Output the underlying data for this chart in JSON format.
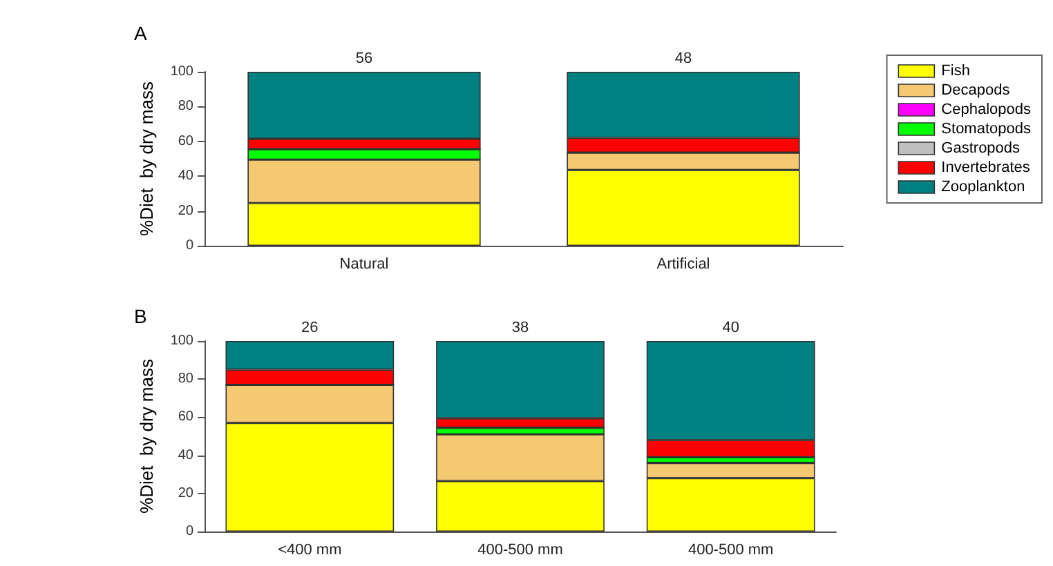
{
  "chart_data": [
    {
      "type": "bar",
      "title": "A",
      "ylabel": "%Diet  by dry mass",
      "categories": [
        "Natural",
        "Artificial"
      ],
      "stacked": true,
      "ylim": [
        0,
        100
      ],
      "yticks": [
        0,
        20,
        40,
        60,
        80,
        100
      ],
      "grid": false,
      "legend": "right",
      "series": [
        {
          "name": "Fish",
          "color": "#ffff00",
          "values": [
            24.5,
            43.5
          ]
        },
        {
          "name": "Decapods",
          "color": "#f5c872",
          "values": [
            25,
            10
          ]
        },
        {
          "name": "Cephalopods",
          "color": "#ff00ff",
          "values": [
            0,
            0
          ]
        },
        {
          "name": "Stomatopods",
          "color": "#00ff00",
          "values": [
            6,
            0
          ]
        },
        {
          "name": "Gastropods",
          "color": "#c0c0c0",
          "values": [
            0,
            0
          ]
        },
        {
          "name": "Invertebrates",
          "color": "#ff0000",
          "values": [
            6,
            8.5
          ]
        },
        {
          "name": "Zooplankton",
          "color": "#008080",
          "values": [
            38.5,
            38
          ]
        }
      ],
      "annotations": [
        "56",
        "48"
      ]
    },
    {
      "type": "bar",
      "title": "B",
      "ylabel": "%Diet  by dry mass",
      "categories": [
        "<400 mm",
        "400-500 mm",
        "400-500 mm"
      ],
      "stacked": true,
      "ylim": [
        0,
        100
      ],
      "yticks": [
        0,
        20,
        40,
        60,
        80,
        100
      ],
      "grid": false,
      "legend": false,
      "series": [
        {
          "color": "#ffff00",
          "values": [
            57,
            26.5,
            28
          ]
        },
        {
          "color": "#f5c872",
          "values": [
            20,
            24.5,
            8
          ]
        },
        {
          "color": "#ff00ff",
          "values": [
            0,
            0,
            0
          ]
        },
        {
          "color": "#00ff00",
          "values": [
            0,
            3.5,
            3
          ]
        },
        {
          "color": "#c0c0c0",
          "values": [
            0,
            0,
            0
          ]
        },
        {
          "color": "#ff0000",
          "values": [
            8,
            5,
            9
          ]
        },
        {
          "color": "#008080",
          "values": [
            15,
            40.5,
            52
          ]
        }
      ],
      "annotations": [
        "26",
        "38",
        "40"
      ]
    }
  ]
}
